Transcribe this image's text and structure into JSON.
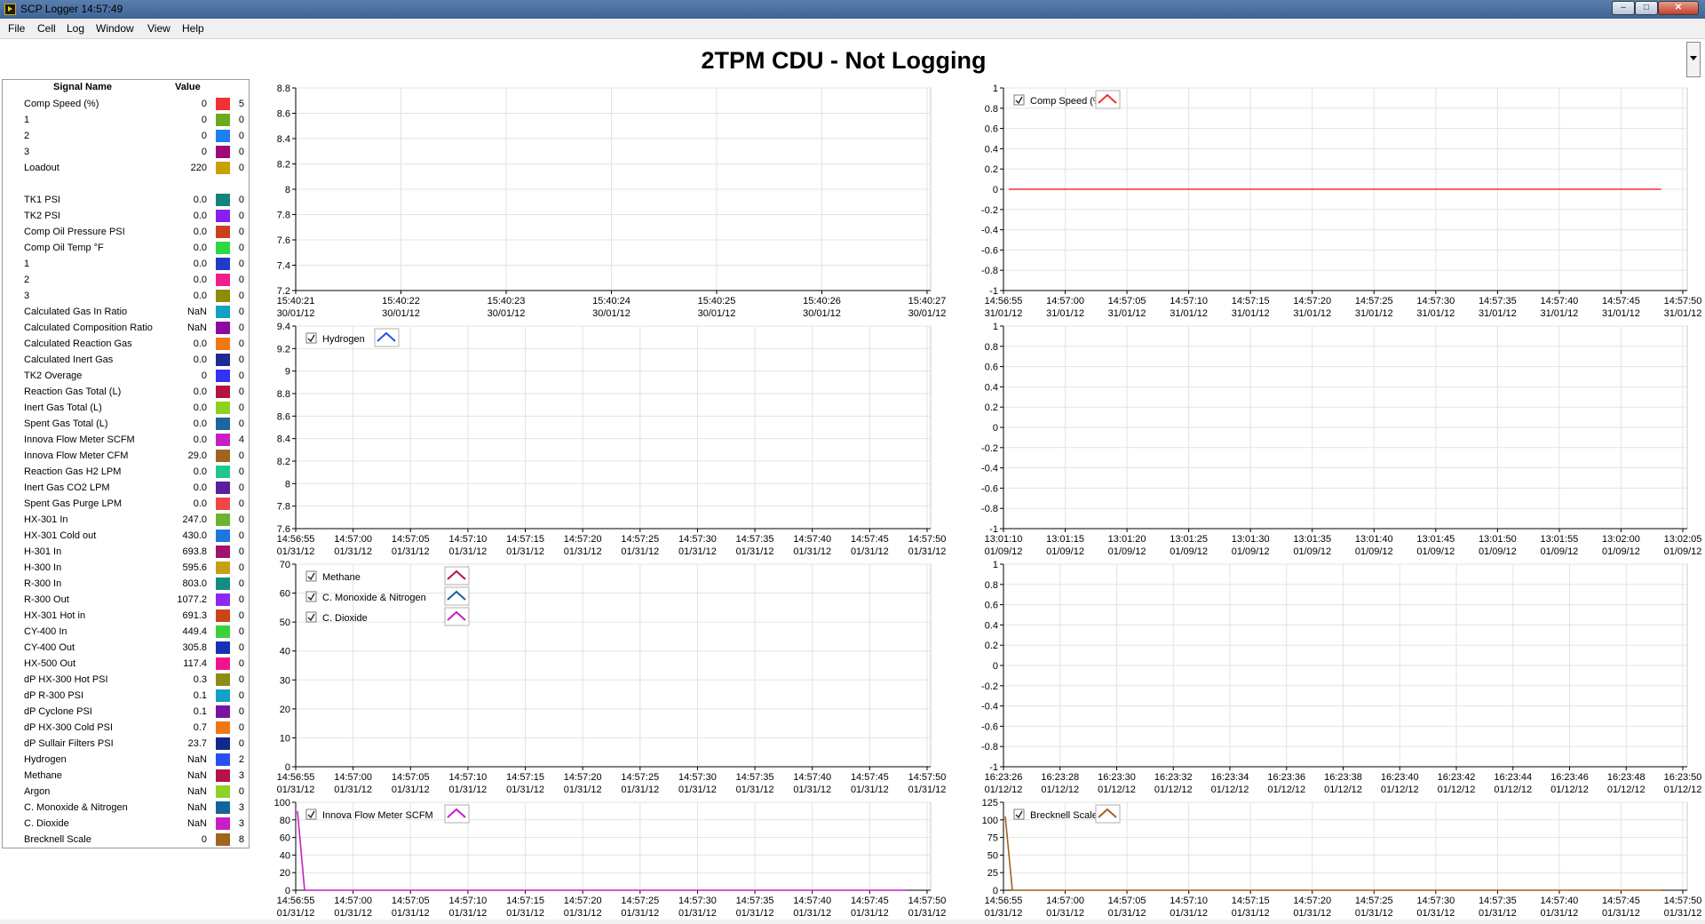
{
  "window": {
    "title": "SCP Logger 14:57:49",
    "min_label": "–",
    "max_label": "□",
    "close_label": "✕"
  },
  "menu": [
    "File",
    "Cell",
    "Log",
    "Window",
    "View",
    "Help"
  ],
  "status_title": "2TPM CDU - Not Logging",
  "signal_table": {
    "headers": {
      "name": "Signal Name",
      "value": "Value"
    },
    "rows": [
      {
        "name": "Comp Speed (%)",
        "value": "0",
        "color": "#f03232",
        "count": "5"
      },
      {
        "name": "1",
        "value": "0",
        "color": "#6aaa1e",
        "count": "0"
      },
      {
        "name": "2",
        "value": "0",
        "color": "#1e7ff0",
        "count": "0"
      },
      {
        "name": "3",
        "value": "0",
        "color": "#9b0a78",
        "count": "0"
      },
      {
        "name": "Loadout",
        "value": "220",
        "color": "#c8a000",
        "count": "0"
      },
      null,
      {
        "name": "TK1 PSI",
        "value": "0.0",
        "color": "#12857a",
        "count": "0"
      },
      {
        "name": "TK2 PSI",
        "value": "0.0",
        "color": "#8a1ef0",
        "count": "0"
      },
      {
        "name": "Comp Oil Pressure PSI",
        "value": "0.0",
        "color": "#c8411e",
        "count": "0"
      },
      {
        "name": "Comp Oil Temp °F",
        "value": "0.0",
        "color": "#2ed840",
        "count": "0"
      },
      {
        "name": "1",
        "value": "0.0",
        "color": "#1e3cc8",
        "count": "0"
      },
      {
        "name": "2",
        "value": "0.0",
        "color": "#f01e8c",
        "count": "0"
      },
      {
        "name": "3",
        "value": "0.0",
        "color": "#8c8c0a",
        "count": "0"
      },
      {
        "name": "Calculated Gas In Ratio",
        "value": "NaN",
        "color": "#14a0c0",
        "count": "0"
      },
      {
        "name": "Calculated Composition Ratio",
        "value": "NaN",
        "color": "#8c0aa0",
        "count": "0"
      },
      {
        "name": "Calculated Reaction Gas",
        "value": "0.0",
        "color": "#f07814",
        "count": "0"
      },
      {
        "name": "Calculated Inert Gas",
        "value": "0.0",
        "color": "#1e2896",
        "count": "0"
      },
      {
        "name": "TK2 Overage",
        "value": "0",
        "color": "#3232f0",
        "count": "0"
      },
      {
        "name": "Reaction Gas Total (L)",
        "value": "0.0",
        "color": "#b4143c",
        "count": "0"
      },
      {
        "name": "Inert Gas Total (L)",
        "value": "0.0",
        "color": "#8cd21e",
        "count": "0"
      },
      {
        "name": "Spent Gas Total (L)",
        "value": "0.0",
        "color": "#1e64a0",
        "count": "0"
      },
      {
        "name": "Innova Flow Meter SCFM",
        "value": "0.0",
        "color": "#c81ec8",
        "count": "4"
      },
      {
        "name": "Innova Flow Meter CFM",
        "value": "29.0",
        "color": "#a0641e",
        "count": "0"
      },
      {
        "name": "Reaction Gas H2 LPM",
        "value": "0.0",
        "color": "#1ec88c",
        "count": "0"
      },
      {
        "name": "Inert Gas CO2 LPM",
        "value": "0.0",
        "color": "#5a1ea0",
        "count": "0"
      },
      {
        "name": "Spent Gas Purge LPM",
        "value": "0.0",
        "color": "#f04646",
        "count": "0"
      },
      {
        "name": "HX-301 In",
        "value": "247.0",
        "color": "#6ab432",
        "count": "0"
      },
      {
        "name": "HX-301 Cold out",
        "value": "430.0",
        "color": "#1e78dc",
        "count": "0"
      },
      {
        "name": "H-301 In",
        "value": "693.8",
        "color": "#a0146e",
        "count": "0"
      },
      {
        "name": "H-300 In",
        "value": "595.6",
        "color": "#c8a014",
        "count": "0"
      },
      {
        "name": "R-300 In",
        "value": "803.0",
        "color": "#148c82",
        "count": "0"
      },
      {
        "name": "R-300 Out",
        "value": "1077.2",
        "color": "#8c28f0",
        "count": "0"
      },
      {
        "name": "HX-301 Hot in",
        "value": "691.3",
        "color": "#c84614",
        "count": "0"
      },
      {
        "name": "CY-400 In",
        "value": "449.4",
        "color": "#3cd23c",
        "count": "0"
      },
      {
        "name": "CY-400 Out",
        "value": "305.8",
        "color": "#1432b4",
        "count": "0"
      },
      {
        "name": "HX-500 Out",
        "value": "117.4",
        "color": "#f0148c",
        "count": "0"
      },
      {
        "name": "dP HX-300 Hot PSI",
        "value": "0.3",
        "color": "#8c8c14",
        "count": "0"
      },
      {
        "name": "dP R-300 PSI",
        "value": "0.1",
        "color": "#14a0c8",
        "count": "0"
      },
      {
        "name": "dP Cyclone PSI",
        "value": "0.1",
        "color": "#7814a0",
        "count": "0"
      },
      {
        "name": "dP HX-300 Cold PSI",
        "value": "0.7",
        "color": "#f07814",
        "count": "0"
      },
      {
        "name": "dP Sullair Filters PSI",
        "value": "23.7",
        "color": "#14288c",
        "count": "0"
      },
      {
        "name": "Hydrogen",
        "value": "NaN",
        "color": "#2850f0",
        "count": "2"
      },
      {
        "name": "Methane",
        "value": "NaN",
        "color": "#b41446",
        "count": "3"
      },
      {
        "name": "Argon",
        "value": "NaN",
        "color": "#8cd228",
        "count": "0"
      },
      {
        "name": "C. Monoxide & Nitrogen",
        "value": "NaN",
        "color": "#14649c",
        "count": "3"
      },
      {
        "name": "C. Dioxide",
        "value": "NaN",
        "color": "#c81ec8",
        "count": "3"
      },
      {
        "name": "Brecknell Scale",
        "value": "0",
        "color": "#a0641e",
        "count": "8"
      }
    ]
  },
  "chart_data": [
    {
      "type": "line",
      "ylim": [
        7.2,
        8.8
      ],
      "yticks": [
        "8.8",
        "8.6",
        "8.4",
        "8.2",
        "8",
        "7.8",
        "7.6",
        "7.4",
        "7.2"
      ],
      "xticks": [
        [
          "15:40:21",
          "30/01/12"
        ],
        [
          "15:40:22",
          "30/01/12"
        ],
        [
          "15:40:23",
          "30/01/12"
        ],
        [
          "15:40:24",
          "30/01/12"
        ],
        [
          "15:40:25",
          "30/01/12"
        ],
        [
          "15:40:26",
          "30/01/12"
        ],
        [
          "15:40:27",
          "30/01/12"
        ]
      ],
      "series": []
    },
    {
      "type": "line",
      "ylim": [
        -1,
        1
      ],
      "yticks": [
        "1",
        "0.8",
        "0.6",
        "0.4",
        "0.2",
        "0",
        "-0.2",
        "-0.4",
        "-0.6",
        "-0.8",
        "-1"
      ],
      "xticks": [
        [
          "14:56:55",
          "31/01/12"
        ],
        [
          "14:57:00",
          "31/01/12"
        ],
        [
          "14:57:05",
          "31/01/12"
        ],
        [
          "14:57:10",
          "31/01/12"
        ],
        [
          "14:57:15",
          "31/01/12"
        ],
        [
          "14:57:20",
          "31/01/12"
        ],
        [
          "14:57:25",
          "31/01/12"
        ],
        [
          "14:57:30",
          "31/01/12"
        ],
        [
          "14:57:35",
          "31/01/12"
        ],
        [
          "14:57:40",
          "31/01/12"
        ],
        [
          "14:57:45",
          "31/01/12"
        ],
        [
          "14:57:50",
          "31/01/12"
        ]
      ],
      "series": [
        {
          "name": "Comp Speed (%)",
          "color": "#f03232",
          "values": [
            0,
            0
          ]
        }
      ]
    },
    {
      "type": "line",
      "ylim": [
        7.6,
        9.4
      ],
      "yticks": [
        "9.4",
        "9.2",
        "9",
        "8.8",
        "8.6",
        "8.4",
        "8.2",
        "8",
        "7.8",
        "7.6"
      ],
      "xticks": [
        [
          "14:56:55",
          "01/31/12"
        ],
        [
          "14:57:00",
          "01/31/12"
        ],
        [
          "14:57:05",
          "01/31/12"
        ],
        [
          "14:57:10",
          "01/31/12"
        ],
        [
          "14:57:15",
          "01/31/12"
        ],
        [
          "14:57:20",
          "01/31/12"
        ],
        [
          "14:57:25",
          "01/31/12"
        ],
        [
          "14:57:30",
          "01/31/12"
        ],
        [
          "14:57:35",
          "01/31/12"
        ],
        [
          "14:57:40",
          "01/31/12"
        ],
        [
          "14:57:45",
          "01/31/12"
        ],
        [
          "14:57:50",
          "01/31/12"
        ]
      ],
      "series": [
        {
          "name": "Hydrogen",
          "color": "#2850f0",
          "values": []
        }
      ]
    },
    {
      "type": "line",
      "ylim": [
        -1,
        1
      ],
      "yticks": [
        "1",
        "0.8",
        "0.6",
        "0.4",
        "0.2",
        "0",
        "-0.2",
        "-0.4",
        "-0.6",
        "-0.8",
        "-1"
      ],
      "xticks": [
        [
          "13:01:10",
          "01/09/12"
        ],
        [
          "13:01:15",
          "01/09/12"
        ],
        [
          "13:01:20",
          "01/09/12"
        ],
        [
          "13:01:25",
          "01/09/12"
        ],
        [
          "13:01:30",
          "01/09/12"
        ],
        [
          "13:01:35",
          "01/09/12"
        ],
        [
          "13:01:40",
          "01/09/12"
        ],
        [
          "13:01:45",
          "01/09/12"
        ],
        [
          "13:01:50",
          "01/09/12"
        ],
        [
          "13:01:55",
          "01/09/12"
        ],
        [
          "13:02:00",
          "01/09/12"
        ],
        [
          "13:02:05",
          "01/09/12"
        ]
      ],
      "series": []
    },
    {
      "type": "line",
      "ylim": [
        0,
        70
      ],
      "yticks": [
        "70",
        "60",
        "50",
        "40",
        "30",
        "20",
        "10",
        "0"
      ],
      "xticks": [
        [
          "14:56:55",
          "01/31/12"
        ],
        [
          "14:57:00",
          "01/31/12"
        ],
        [
          "14:57:05",
          "01/31/12"
        ],
        [
          "14:57:10",
          "01/31/12"
        ],
        [
          "14:57:15",
          "01/31/12"
        ],
        [
          "14:57:20",
          "01/31/12"
        ],
        [
          "14:57:25",
          "01/31/12"
        ],
        [
          "14:57:30",
          "01/31/12"
        ],
        [
          "14:57:35",
          "01/31/12"
        ],
        [
          "14:57:40",
          "01/31/12"
        ],
        [
          "14:57:45",
          "01/31/12"
        ],
        [
          "14:57:50",
          "01/31/12"
        ]
      ],
      "series": [
        {
          "name": "Methane",
          "color": "#b41446",
          "values": []
        },
        {
          "name": "C. Monoxide & Nitrogen",
          "color": "#14649c",
          "values": []
        },
        {
          "name": "C. Dioxide",
          "color": "#c81ec8",
          "values": []
        }
      ]
    },
    {
      "type": "line",
      "ylim": [
        -1,
        1
      ],
      "yticks": [
        "1",
        "0.8",
        "0.6",
        "0.4",
        "0.2",
        "0",
        "-0.2",
        "-0.4",
        "-0.6",
        "-0.8",
        "-1"
      ],
      "xticks": [
        [
          "16:23:26",
          "01/12/12"
        ],
        [
          "16:23:28",
          "01/12/12"
        ],
        [
          "16:23:30",
          "01/12/12"
        ],
        [
          "16:23:32",
          "01/12/12"
        ],
        [
          "16:23:34",
          "01/12/12"
        ],
        [
          "16:23:36",
          "01/12/12"
        ],
        [
          "16:23:38",
          "01/12/12"
        ],
        [
          "16:23:40",
          "01/12/12"
        ],
        [
          "16:23:42",
          "01/12/12"
        ],
        [
          "16:23:44",
          "01/12/12"
        ],
        [
          "16:23:46",
          "01/12/12"
        ],
        [
          "16:23:48",
          "01/12/12"
        ],
        [
          "16:23:50",
          "01/12/12"
        ]
      ],
      "series": []
    },
    {
      "type": "line",
      "ylim": [
        0,
        100
      ],
      "yticks": [
        "100",
        "80",
        "60",
        "40",
        "20",
        "0"
      ],
      "xticks": [
        [
          "14:56:55",
          "01/31/12"
        ],
        [
          "14:57:00",
          "01/31/12"
        ],
        [
          "14:57:05",
          "01/31/12"
        ],
        [
          "14:57:10",
          "01/31/12"
        ],
        [
          "14:57:15",
          "01/31/12"
        ],
        [
          "14:57:20",
          "01/31/12"
        ],
        [
          "14:57:25",
          "01/31/12"
        ],
        [
          "14:57:30",
          "01/31/12"
        ],
        [
          "14:57:35",
          "01/31/12"
        ],
        [
          "14:57:40",
          "01/31/12"
        ],
        [
          "14:57:45",
          "01/31/12"
        ],
        [
          "14:57:50",
          "01/31/12"
        ]
      ],
      "series": [
        {
          "name": "Innova Flow Meter SCFM",
          "color": "#c81ec8",
          "values": [
            90,
            0,
            0
          ]
        }
      ]
    },
    {
      "type": "line",
      "ylim": [
        0,
        125
      ],
      "yticks": [
        "125",
        "100",
        "75",
        "50",
        "25",
        "0"
      ],
      "xticks": [
        [
          "14:56:55",
          "01/31/12"
        ],
        [
          "14:57:00",
          "01/31/12"
        ],
        [
          "14:57:05",
          "01/31/12"
        ],
        [
          "14:57:10",
          "01/31/12"
        ],
        [
          "14:57:15",
          "01/31/12"
        ],
        [
          "14:57:20",
          "01/31/12"
        ],
        [
          "14:57:25",
          "01/31/12"
        ],
        [
          "14:57:30",
          "01/31/12"
        ],
        [
          "14:57:35",
          "01/31/12"
        ],
        [
          "14:57:40",
          "01/31/12"
        ],
        [
          "14:57:45",
          "01/31/12"
        ],
        [
          "14:57:50",
          "01/31/12"
        ]
      ],
      "series": [
        {
          "name": "Brecknell Scale",
          "color": "#a0641e",
          "values": [
            105,
            0,
            0
          ]
        }
      ]
    }
  ]
}
